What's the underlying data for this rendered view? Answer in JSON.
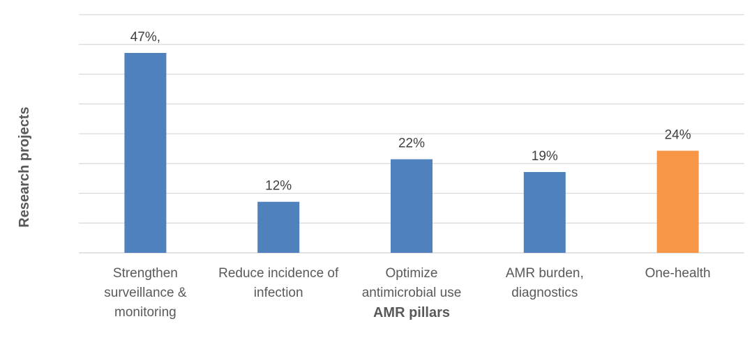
{
  "chart_data": {
    "type": "bar",
    "categories": [
      "Strengthen surveillance & monitoring",
      "Reduce incidence of infection",
      "Optimize antimicrobial use",
      "AMR burden, diagnostics",
      "One-health"
    ],
    "category_lines": [
      [
        "Strengthen",
        "surveillance &",
        "monitoring"
      ],
      [
        "Reduce incidence of",
        "infection"
      ],
      [
        "Optimize",
        "antimicrobial use"
      ],
      [
        "AMR burden,",
        "diagnostics"
      ],
      [
        "One-health"
      ]
    ],
    "values": [
      47,
      12,
      22,
      19,
      24
    ],
    "data_labels": [
      "47%,",
      "12%",
      "22%",
      "19%",
      "24%"
    ],
    "bar_colors": [
      "#4f81bd",
      "#4f81bd",
      "#4f81bd",
      "#4f81bd",
      "#f79646"
    ],
    "xlabel": "AMR pillars",
    "ylabel": "Research projects",
    "ylim": [
      0,
      56
    ],
    "gridline_count": 8,
    "grid": true,
    "legend": "none"
  }
}
